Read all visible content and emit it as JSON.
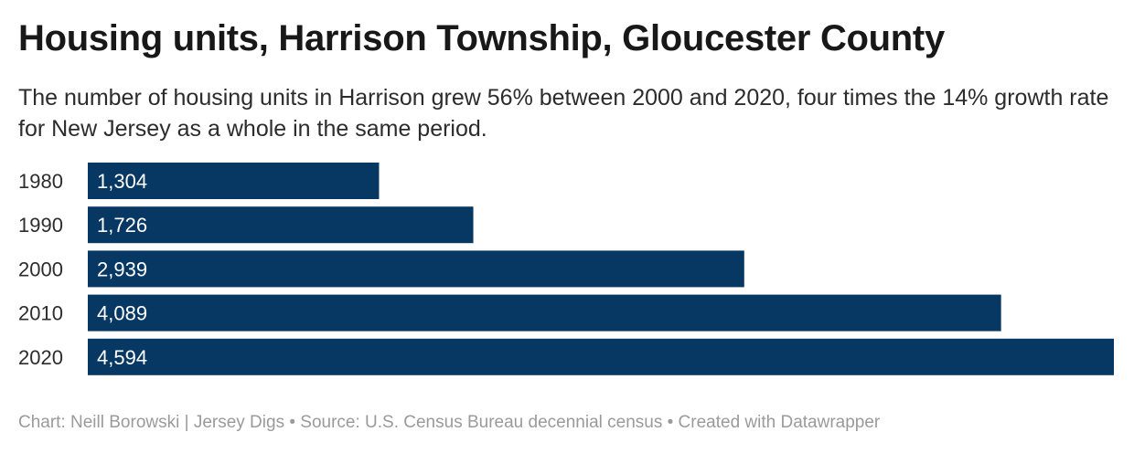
{
  "chart_data": {
    "type": "bar",
    "orientation": "horizontal",
    "title": "Housing units, Harrison Township, Gloucester County",
    "subtitle": "The number of housing units in Harrison grew 56% between 2000 and 2020, four times the 14% growth rate for New Jersey as a whole in the same period.",
    "categories": [
      "1980",
      "1990",
      "2000",
      "2010",
      "2020"
    ],
    "values": [
      1304,
      1726,
      2939,
      4089,
      4594
    ],
    "value_labels": [
      "1,304",
      "1,726",
      "2,939",
      "4,089",
      "4,594"
    ],
    "xlim": [
      0,
      4594
    ],
    "grid": false,
    "legend": "none",
    "bar_color": "#073763",
    "label_color": "#ffffff"
  },
  "footer": {
    "credit": "Chart: Neill Borowski | Jersey Digs • Source: U.S. Census Bureau decennial census • Created with Datawrapper"
  }
}
